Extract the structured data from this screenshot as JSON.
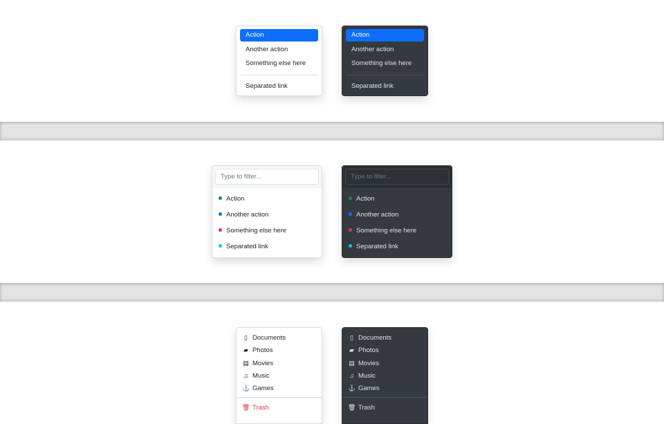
{
  "basic": {
    "items": [
      "Action",
      "Another action",
      "Something else here"
    ],
    "separated": "Separated link",
    "active": "Action",
    "accent": "#0d6efd"
  },
  "filter": {
    "placeholder": "Type to filter...",
    "items": [
      {
        "label": "Action",
        "color": "#198754"
      },
      {
        "label": "Another action",
        "color": "#0d6efd"
      },
      {
        "label": "Something else here",
        "color": "#dc3545"
      },
      {
        "label": "Separated link",
        "color": "#0dcaf0"
      }
    ]
  },
  "icons": {
    "items": [
      {
        "label": "Documents",
        "icon": "file-icon"
      },
      {
        "label": "Photos",
        "icon": "image-icon"
      },
      {
        "label": "Movies",
        "icon": "film-icon"
      },
      {
        "label": "Music",
        "icon": "music-note-icon"
      },
      {
        "label": "Games",
        "icon": "joystick-icon"
      }
    ],
    "trash": {
      "label": "Trash",
      "icon": "trash-icon",
      "color": "#dc3545"
    }
  }
}
